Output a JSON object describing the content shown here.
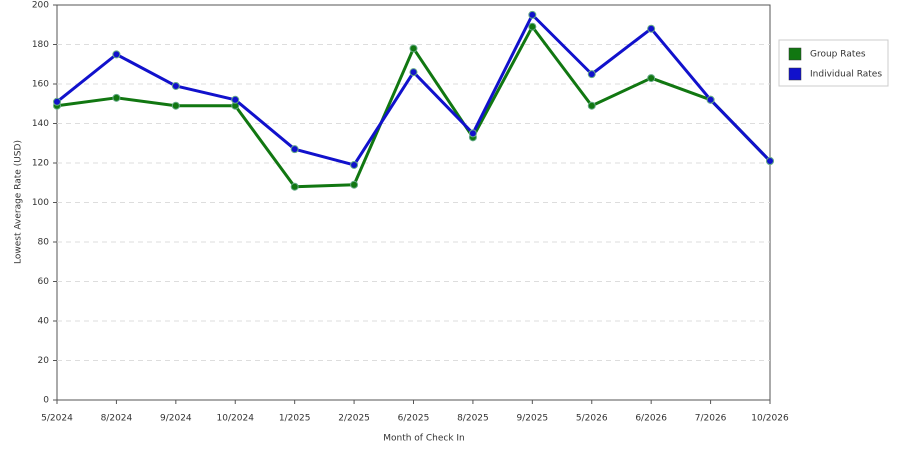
{
  "chart_data": {
    "type": "line",
    "x_label": "Month of Check In",
    "y_label": "Lowest Average Rate (USD)",
    "categories": [
      "5/2024",
      "8/2024",
      "9/2024",
      "10/2024",
      "1/2025",
      "2/2025",
      "6/2025",
      "8/2025",
      "9/2025",
      "5/2026",
      "6/2026",
      "7/2026",
      "10/2026"
    ],
    "series": [
      {
        "name": "Group Rates",
        "color": "#117711",
        "values": [
          149,
          153,
          149,
          149,
          108,
          109,
          178,
          133,
          189,
          149,
          163,
          152,
          121
        ]
      },
      {
        "name": "Individual Rates",
        "color": "#1111cc",
        "values": [
          151,
          175,
          159,
          152,
          127,
          119,
          166,
          135,
          195,
          165,
          188,
          152,
          121
        ]
      }
    ],
    "ylim": [
      0,
      200
    ],
    "yticks": [
      0,
      20,
      40,
      60,
      80,
      100,
      120,
      140,
      160,
      180,
      200
    ],
    "grid": true,
    "legend": "right"
  }
}
